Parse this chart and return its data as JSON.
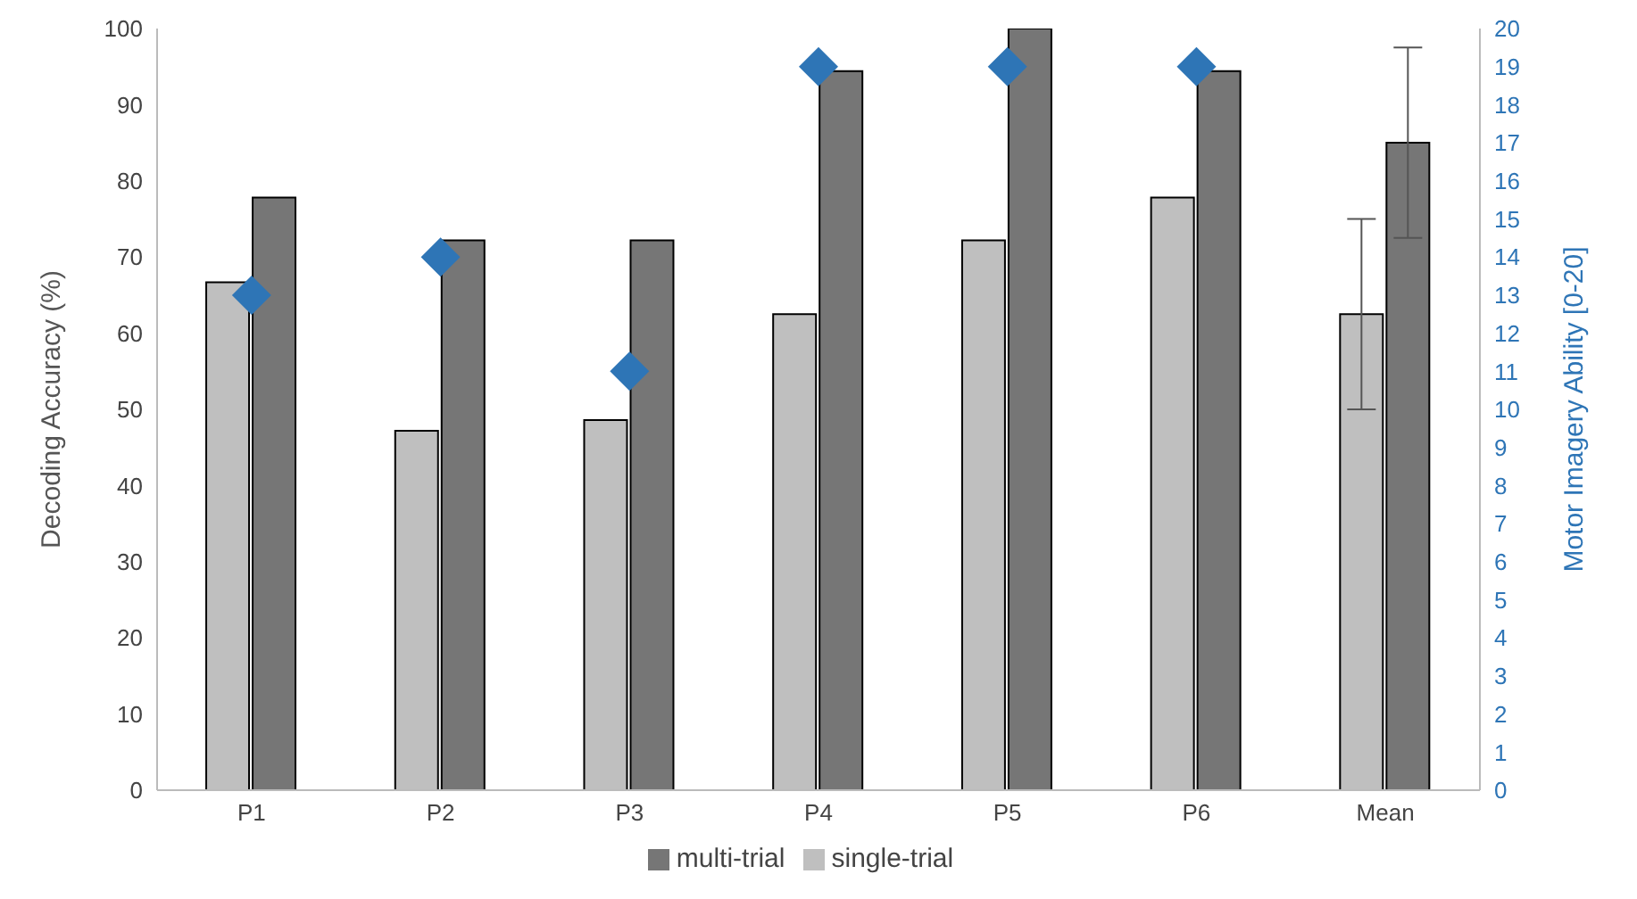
{
  "chart_data": {
    "type": "bar",
    "categories": [
      "P1",
      "P2",
      "P3",
      "P4",
      "P5",
      "P6",
      "Mean"
    ],
    "ylabel": "Decoding Accuracy (%)",
    "y2label": "Motor Imagery Ability  [0-20]",
    "ylim": [
      0,
      100
    ],
    "yticks": [
      0,
      10,
      20,
      30,
      40,
      50,
      60,
      70,
      80,
      90,
      100
    ],
    "y2lim": [
      0,
      20
    ],
    "y2ticks": [
      0,
      1,
      2,
      3,
      4,
      5,
      6,
      7,
      8,
      9,
      10,
      11,
      12,
      13,
      14,
      15,
      16,
      17,
      18,
      19,
      20
    ],
    "grid": false,
    "legend": "bottom",
    "series": [
      {
        "name": "single-trial",
        "color": "#bfbfbf",
        "values": [
          66.7,
          47.2,
          48.6,
          62.5,
          72.2,
          77.8,
          62.5
        ],
        "errors": [
          null,
          null,
          null,
          null,
          null,
          null,
          12.5
        ]
      },
      {
        "name": "multi-trial",
        "color": "#767676",
        "values": [
          77.8,
          72.2,
          72.2,
          94.4,
          100,
          94.4,
          85
        ],
        "errors": [
          null,
          null,
          null,
          null,
          null,
          null,
          12.5
        ]
      },
      {
        "type": "scatter",
        "axis": "y2",
        "color": "#2e75b6",
        "marker": "diamond",
        "x": [
          "P1",
          "P2",
          "P3",
          "P4",
          "P5",
          "P6"
        ],
        "values": [
          13,
          14,
          11,
          19,
          19,
          19
        ]
      }
    ]
  }
}
